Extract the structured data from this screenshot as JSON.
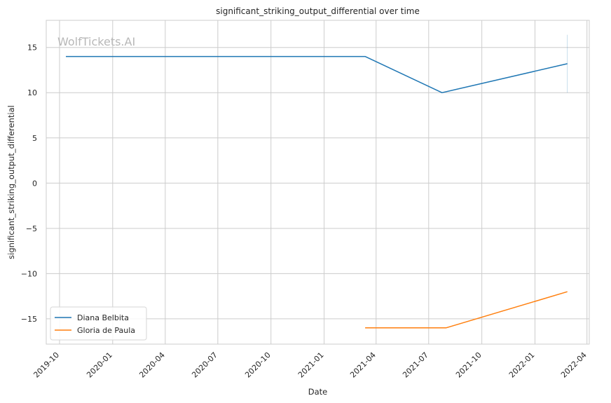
{
  "chart_data": {
    "type": "line",
    "title": "significant_striking_output_differential over time",
    "xlabel": "Date",
    "ylabel": "significant_striking_output_differential",
    "watermark": "WolfTickets.AI",
    "grid": true,
    "legend_position": "lower-left",
    "xlim": [
      "2019-09-08",
      "2022-04-05"
    ],
    "ylim": [
      -17.8,
      18
    ],
    "x_ticks": [
      "2019-10",
      "2020-01",
      "2020-04",
      "2020-07",
      "2020-10",
      "2021-01",
      "2021-04",
      "2021-07",
      "2021-10",
      "2022-01",
      "2022-04"
    ],
    "y_ticks": [
      15,
      10,
      5,
      0,
      -5,
      -10,
      -15
    ],
    "y_tick_labels": [
      "15",
      "10",
      "5",
      "0",
      "−5",
      "−10",
      "−15"
    ],
    "series": [
      {
        "name": "Diana Belbita",
        "color": "#1f77b4",
        "points": [
          {
            "x": "2019-10-12",
            "y": 14
          },
          {
            "x": "2021-03-13",
            "y": 14
          },
          {
            "x": "2021-07-24",
            "y": 10
          },
          {
            "x": "2022-02-26",
            "y": 13.2
          }
        ]
      },
      {
        "name": "Gloria de Paula",
        "color": "#ff7f0e",
        "points": [
          {
            "x": "2021-03-13",
            "y": -16
          },
          {
            "x": "2021-07-31",
            "y": -16
          },
          {
            "x": "2022-02-26",
            "y": -12
          }
        ]
      }
    ]
  }
}
